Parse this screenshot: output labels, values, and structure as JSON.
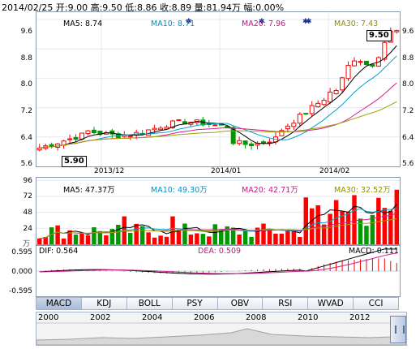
{
  "header": {
    "quote": "2014/02/25 开:9.00  高:9.50  低:8.86  收:8.89  量:81.94万  幅:0.00%"
  },
  "price_panel": {
    "ma5": "MA5: 8.74",
    "ma10": "MA10: 8.71",
    "ma20": "MA20: 7.96",
    "ma30": "MA30: 7.43",
    "y_ticks_left": [
      "9.6",
      "8.8",
      "8.0",
      "7.2",
      "6.4",
      "5.6"
    ],
    "y_ticks_right": [
      "9.6",
      "8.8",
      "8.0",
      "7.2",
      "6.4",
      "5.6"
    ],
    "dates": [
      "2013/12",
      "2014/01",
      "2014/02"
    ],
    "high_callout": "9.50",
    "low_callout": "5.90",
    "colors": {
      "up": "#ff0000",
      "down": "#009900",
      "ma5": "#000000",
      "ma10": "#00a0d0",
      "ma20": "#d02090",
      "ma30": "#a0a000"
    }
  },
  "volume_panel": {
    "ma5": "MA5: 47.37万",
    "ma10": "MA10: 49.30万",
    "ma20": "MA20: 42.71万",
    "ma30": "MA30: 32.52万",
    "y_ticks": [
      "96",
      "72",
      "48",
      "24"
    ],
    "unit": "万"
  },
  "macd_panel": {
    "dif": "DIF: 0.564",
    "dea": "DEA: 0.509",
    "macd": "MACD: 0.111",
    "y_ticks": [
      "0.595",
      "0.000",
      "-0.595"
    ]
  },
  "tabs": [
    "MACD",
    "KDJ",
    "BOLL",
    "PSY",
    "OBV",
    "RSI",
    "WVAD",
    "CCI"
  ],
  "active_tab": "MACD",
  "navigator": {
    "years": [
      "2000",
      "2002",
      "2004",
      "2006",
      "2008",
      "2010",
      "2012"
    ]
  }
}
